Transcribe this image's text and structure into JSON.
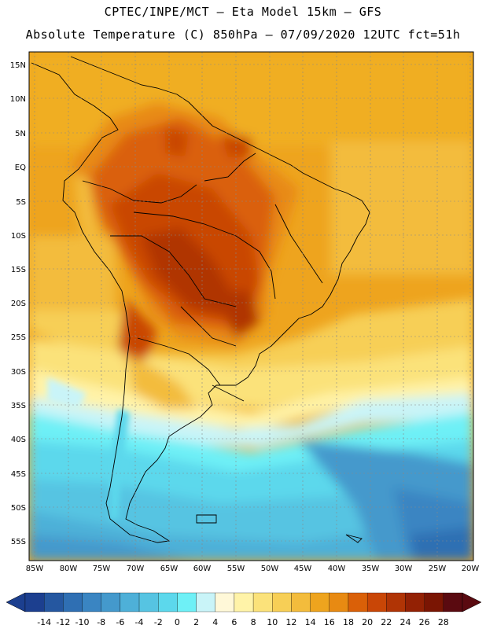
{
  "header": {
    "line1": "CPTEC/INPE/MCT –  Eta Model 15km – GFS",
    "line2": "Absolute Temperature (C) 850hPa – 07/09/2020 12UTC fct=51h"
  },
  "map": {
    "lon_range": [
      -86,
      -19.6
    ],
    "lat_range": [
      -58,
      16
    ],
    "lat_labels": [
      "15N",
      "10N",
      "5N",
      "EQ",
      "5S",
      "10S",
      "15S",
      "20S",
      "25S",
      "30S",
      "35S",
      "40S",
      "45S",
      "50S",
      "55S"
    ],
    "lon_labels": [
      "85W",
      "80W",
      "75W",
      "70W",
      "65W",
      "60W",
      "55W",
      "50W",
      "45W",
      "40W",
      "35W",
      "30W",
      "25W",
      "20W"
    ]
  },
  "colorbar": {
    "labels": [
      "-14",
      "-12",
      "-10",
      "-8",
      "-6",
      "-4",
      "-2",
      "0",
      "2",
      "4",
      "6",
      "8",
      "10",
      "12",
      "14",
      "16",
      "18",
      "20",
      "22",
      "24",
      "26",
      "28"
    ],
    "colors": [
      "#1c3f8f",
      "#2557a0",
      "#2f6fb3",
      "#3a85c2",
      "#4499cc",
      "#4eb0d8",
      "#56c4e2",
      "#5cd8ec",
      "#6ef0f6",
      "#c9f4f8",
      "#fff8d8",
      "#fff3a8",
      "#fbe27a",
      "#f7cf56",
      "#f3bc3c",
      "#eea41e",
      "#e88a12",
      "#da6008",
      "#c94606",
      "#b03405",
      "#932104",
      "#7a1503",
      "#5a0a10"
    ]
  }
}
